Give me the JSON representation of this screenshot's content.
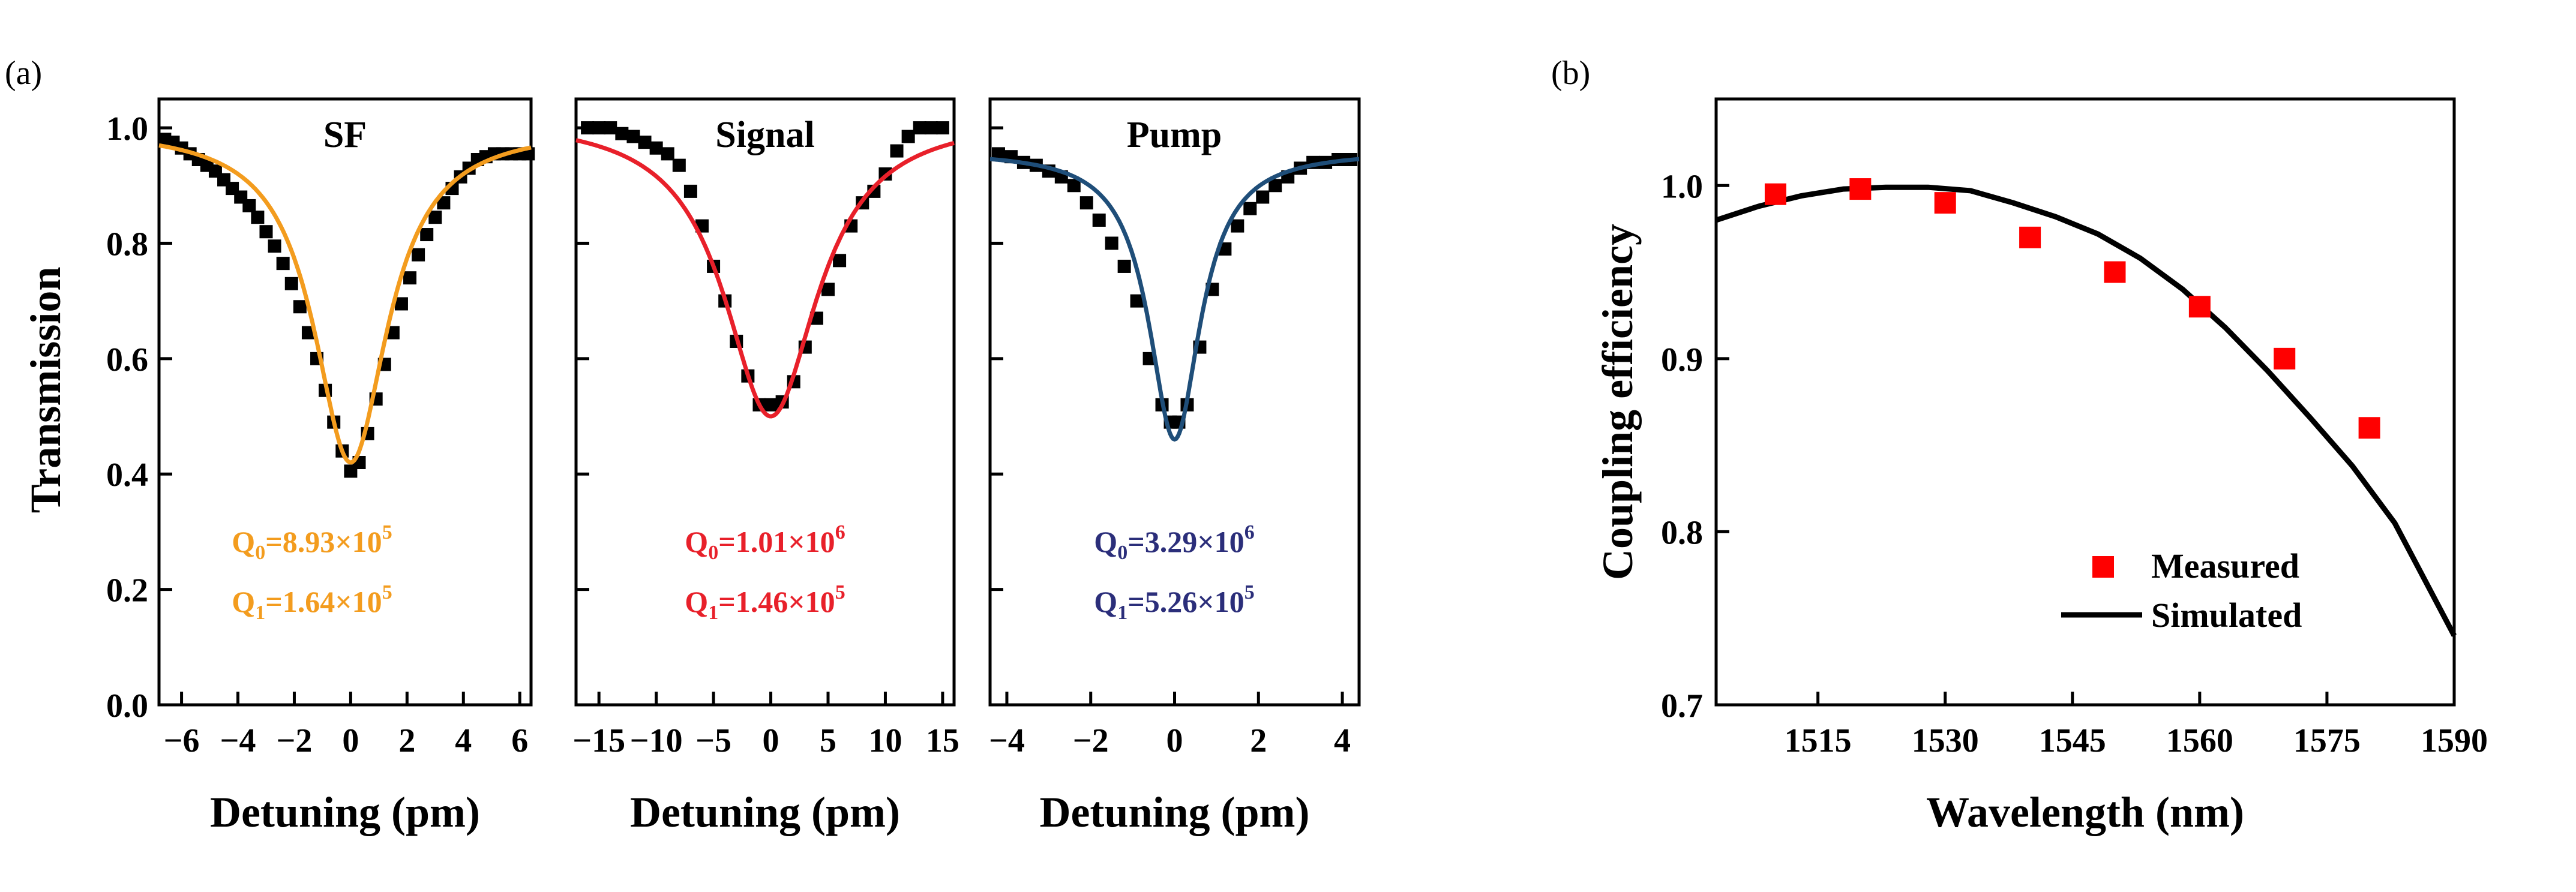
{
  "panel_a": {
    "label": "(a)",
    "ylabel": "Transmission",
    "xlabel": "Detuning (pm)",
    "y_ticks": [
      "0.0",
      "0.2",
      "0.4",
      "0.6",
      "0.8",
      "1.0"
    ]
  },
  "panel_b": {
    "label": "(b)"
  },
  "chart_data": [
    {
      "type": "scatter",
      "title": "SF",
      "xlabel": "Detuning (pm)",
      "ylabel": "Transmission",
      "xlim": [
        -6.8,
        6.4
      ],
      "ylim": [
        0.0,
        1.05
      ],
      "x_ticks": [
        -6,
        -4,
        -2,
        0,
        2,
        4,
        6
      ],
      "x_tick_labels": [
        "−6",
        "−4",
        "−2",
        "0",
        "2",
        "4",
        "6"
      ],
      "y_ticks": [
        0.0,
        0.2,
        0.4,
        0.6,
        0.8,
        1.0
      ],
      "fit": {
        "center": 0.0,
        "depth": 0.58,
        "gamma": 1.6,
        "baseline": 1.0,
        "color": "#F39C1E"
      },
      "annotations": [
        {
          "base": "Q",
          "sub": "0",
          "text": "=8.93×10",
          "sup": "5",
          "color": "#F39C1E"
        },
        {
          "base": "Q",
          "sub": "1",
          "text": "=1.64×10",
          "sup": "5",
          "color": "#F39C1E"
        }
      ],
      "series": [
        {
          "name": "Measured",
          "marker": "square",
          "color": "#000000",
          "x": [
            -6.6,
            -6.3,
            -6.0,
            -5.7,
            -5.4,
            -5.1,
            -4.8,
            -4.5,
            -4.2,
            -3.9,
            -3.6,
            -3.3,
            -3.0,
            -2.7,
            -2.4,
            -2.1,
            -1.8,
            -1.5,
            -1.2,
            -0.9,
            -0.6,
            -0.3,
            0.0,
            0.3,
            0.6,
            0.9,
            1.2,
            1.5,
            1.8,
            2.1,
            2.4,
            2.7,
            3.0,
            3.3,
            3.6,
            3.9,
            4.2,
            4.5,
            4.8,
            5.1,
            5.4,
            5.7,
            6.0,
            6.3
          ],
          "y": [
            0.98,
            0.975,
            0.965,
            0.955,
            0.945,
            0.935,
            0.925,
            0.91,
            0.895,
            0.88,
            0.865,
            0.845,
            0.82,
            0.795,
            0.765,
            0.73,
            0.69,
            0.645,
            0.6,
            0.545,
            0.49,
            0.44,
            0.405,
            0.42,
            0.47,
            0.53,
            0.59,
            0.645,
            0.695,
            0.74,
            0.78,
            0.815,
            0.845,
            0.87,
            0.895,
            0.915,
            0.93,
            0.945,
            0.95,
            0.955,
            0.955,
            0.955,
            0.955,
            0.955
          ]
        }
      ]
    },
    {
      "type": "scatter",
      "title": "Signal",
      "xlabel": "Detuning (pm)",
      "xlim": [
        -17,
        16
      ],
      "ylim": [
        0.0,
        1.05
      ],
      "x_ticks": [
        -15,
        -10,
        -5,
        0,
        5,
        10,
        15
      ],
      "x_tick_labels": [
        "−15",
        "−10",
        "−5",
        "0",
        "5",
        "10",
        "15"
      ],
      "y_ticks": [
        0.0,
        0.2,
        0.4,
        0.6,
        0.8,
        1.0
      ],
      "fit": {
        "center": 0.0,
        "depth": 0.52,
        "gamma": 5.0,
        "baseline": 1.02,
        "color": "#E8202A"
      },
      "annotations": [
        {
          "base": "Q",
          "sub": "0",
          "text": "=1.01×10",
          "sup": "6",
          "color": "#E8202A"
        },
        {
          "base": "Q",
          "sub": "1",
          "text": "=1.46×10",
          "sup": "5",
          "color": "#E8202A"
        }
      ],
      "series": [
        {
          "name": "Measured",
          "marker": "square",
          "color": "#000000",
          "x": [
            -16,
            -15,
            -14,
            -13,
            -12,
            -11,
            -10,
            -9,
            -8,
            -7,
            -6,
            -5,
            -4,
            -3,
            -2,
            -1,
            0,
            1,
            2,
            3,
            4,
            5,
            6,
            7,
            8,
            9,
            10,
            11,
            12,
            13,
            14,
            15
          ],
          "y": [
            1.0,
            1.0,
            1.0,
            0.99,
            0.985,
            0.975,
            0.965,
            0.955,
            0.935,
            0.89,
            0.83,
            0.76,
            0.7,
            0.63,
            0.57,
            0.52,
            0.52,
            0.525,
            0.56,
            0.62,
            0.67,
            0.72,
            0.77,
            0.83,
            0.87,
            0.89,
            0.92,
            0.96,
            0.985,
            1.0,
            1.0,
            1.0
          ]
        }
      ]
    },
    {
      "type": "scatter",
      "title": "Pump",
      "xlabel": "Detuning (pm)",
      "xlim": [
        -4.4,
        4.4
      ],
      "ylim": [
        0.0,
        1.05
      ],
      "x_ticks": [
        -4,
        -2,
        0,
        2,
        4
      ],
      "x_tick_labels": [
        "−4",
        "−2",
        "0",
        "2",
        "4"
      ],
      "y_ticks": [
        0.0,
        0.2,
        0.4,
        0.6,
        0.8,
        1.0
      ],
      "fit": {
        "center": 0.0,
        "depth": 0.5,
        "gamma": 0.75,
        "baseline": 0.96,
        "color": "#1F4E79"
      },
      "annotations": [
        {
          "base": "Q",
          "sub": "0",
          "text": "=3.29×10",
          "sup": "6",
          "color": "#2B2E7A"
        },
        {
          "base": "Q",
          "sub": "1",
          "text": "=5.26×10",
          "sup": "5",
          "color": "#2B2E7A"
        }
      ],
      "series": [
        {
          "name": "Measured",
          "marker": "square",
          "color": "#000000",
          "x": [
            -4.2,
            -3.9,
            -3.6,
            -3.3,
            -3.0,
            -2.7,
            -2.4,
            -2.1,
            -1.8,
            -1.5,
            -1.2,
            -0.9,
            -0.6,
            -0.3,
            -0.1,
            0.1,
            0.3,
            0.6,
            0.9,
            1.2,
            1.5,
            1.8,
            2.1,
            2.4,
            2.7,
            3.0,
            3.3,
            3.6,
            3.9,
            4.2
          ],
          "y": [
            0.955,
            0.95,
            0.94,
            0.935,
            0.925,
            0.915,
            0.9,
            0.87,
            0.84,
            0.8,
            0.76,
            0.7,
            0.6,
            0.52,
            0.49,
            0.49,
            0.52,
            0.62,
            0.72,
            0.79,
            0.83,
            0.86,
            0.88,
            0.9,
            0.915,
            0.93,
            0.94,
            0.94,
            0.945,
            0.945
          ]
        }
      ]
    },
    {
      "type": "line",
      "xlabel": "Wavelength (nm)",
      "ylabel": "Coupling efficiency",
      "xlim": [
        1503,
        1590
      ],
      "ylim": [
        0.7,
        1.05
      ],
      "x_ticks": [
        1515,
        1530,
        1545,
        1560,
        1575,
        1590
      ],
      "x_tick_labels": [
        "1515",
        "1530",
        "1545",
        "1560",
        "1575",
        "1590"
      ],
      "y_ticks": [
        0.7,
        0.8,
        0.9,
        1.0
      ],
      "y_tick_labels": [
        "0.7",
        "0.8",
        "0.9",
        "1.0"
      ],
      "legend": {
        "position": "bottom-right",
        "items": [
          "Measured",
          "Simulated"
        ]
      },
      "series": [
        {
          "name": "Measured",
          "type": "scatter",
          "marker": "square",
          "color": "#FF0000",
          "x": [
            1510,
            1520,
            1530,
            1540,
            1550,
            1560,
            1570,
            1580
          ],
          "y": [
            0.995,
            0.998,
            0.99,
            0.97,
            0.95,
            0.93,
            0.9,
            0.86
          ]
        },
        {
          "name": "Simulated",
          "type": "line",
          "color": "#000000",
          "x": [
            1503,
            1508,
            1513,
            1518,
            1523,
            1528,
            1533,
            1538,
            1543,
            1548,
            1553,
            1558,
            1563,
            1568,
            1573,
            1578,
            1583,
            1590
          ],
          "y": [
            0.98,
            0.988,
            0.994,
            0.998,
            0.999,
            0.999,
            0.997,
            0.99,
            0.982,
            0.972,
            0.958,
            0.94,
            0.918,
            0.893,
            0.866,
            0.838,
            0.805,
            0.74
          ]
        }
      ]
    }
  ]
}
